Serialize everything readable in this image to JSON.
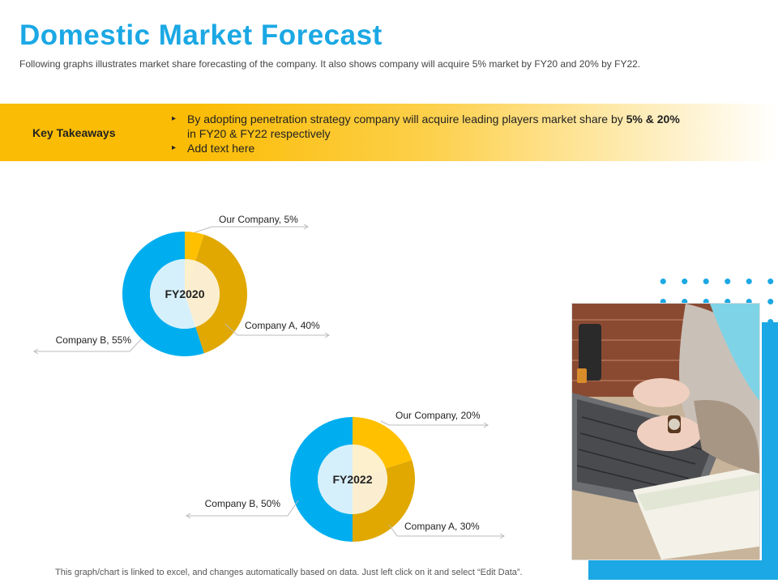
{
  "header": {
    "title": "Domestic Market Forecast",
    "subtitle": "Following graphs illustrates market share forecasting of the company.  It also shows company  will acquire 5% market by FY20 and 20% by FY22."
  },
  "takeaways": {
    "label": "Key Takeaways",
    "bullet1_text": "By adopting penetration strategy company will acquire leading players market share by ",
    "bullet1_bold": "5% & 20%",
    "bullet1_tail": "in FY20 & FY22 respectively",
    "bullet2": "Add text here"
  },
  "footer": {
    "note": "This graph/chart is linked to excel,  and changes automatically based on data.  Just left click on it and select “Edit Data”."
  },
  "colors": {
    "accent_blue": "#1ba8e4",
    "accent_yellow": "#fbbc05",
    "our_company": "#ffc000",
    "company_a": "#e0a800",
    "company_b": "#00aeef"
  },
  "image": {
    "icon": "photo-person-laptop"
  },
  "chart_data": [
    {
      "type": "pie",
      "title": "FY2020",
      "categories": [
        "Our Company",
        "Company A",
        "Company B"
      ],
      "values": [
        5,
        40,
        55
      ],
      "labels": [
        "Our Company,  5%",
        "Company A,  40%",
        "Company B,  55%"
      ]
    },
    {
      "type": "pie",
      "title": "FY2022",
      "categories": [
        "Our Company",
        "Company A",
        "Company B"
      ],
      "values": [
        20,
        30,
        50
      ],
      "labels": [
        "Our Company,  20%",
        "Company A,  30%",
        "Company B,  50%"
      ]
    }
  ]
}
